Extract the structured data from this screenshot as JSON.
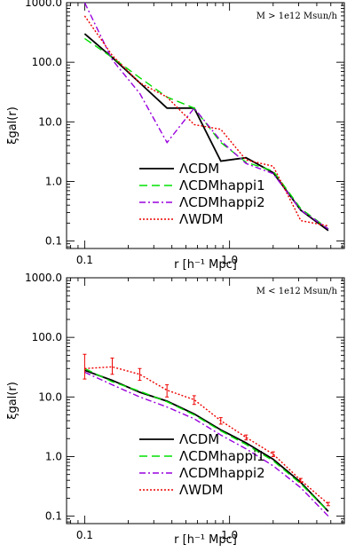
{
  "chart_data": [
    {
      "type": "line",
      "annotation": "M > 1e12 Msun/h",
      "xlabel": "r [h⁻¹ Mpc]",
      "ylabel": "ξgal(r)",
      "xscale": "log",
      "yscale": "log",
      "xlim": [
        0.075,
        6.2
      ],
      "ylim": [
        0.075,
        1000
      ],
      "xticks": [
        "0.1",
        "1.0"
      ],
      "yticks": [
        "0.1",
        "1.0",
        "10.0",
        "100.0",
        "1000.0"
      ],
      "legend_position": "bottom-center",
      "series": [
        {
          "name": "ΛCDM",
          "color": "#000000",
          "dash": "solid",
          "x": [
            0.1,
            0.155,
            0.24,
            0.37,
            0.57,
            0.87,
            1.3,
            2.0,
            3.1,
            4.8
          ],
          "y": [
            300,
            120,
            45,
            17,
            17,
            2.2,
            2.5,
            1.4,
            0.33,
            0.15
          ]
        },
        {
          "name": "ΛCDMhappi1",
          "color": "#00e000",
          "dash": "dashed",
          "x": [
            0.1,
            0.155,
            0.24,
            0.37,
            0.57,
            0.87,
            1.3,
            2.0,
            3.1,
            4.8
          ],
          "y": [
            250,
            120,
            55,
            26,
            17,
            4.5,
            2.1,
            1.5,
            0.35,
            0.16
          ]
        },
        {
          "name": "ΛCDMhappi2",
          "color": "#9900dd",
          "dash": "dashdot",
          "x": [
            0.1,
            0.155,
            0.24,
            0.37,
            0.57,
            0.87,
            1.3,
            2.0,
            3.1,
            4.8
          ],
          "y": [
            1000,
            110,
            30,
            4.5,
            17,
            4.8,
            2.0,
            1.35,
            0.33,
            0.16
          ]
        },
        {
          "name": "ΛWDM",
          "color": "#ee0000",
          "dash": "dotted",
          "x": [
            0.1,
            0.155,
            0.24,
            0.37,
            0.57,
            0.87,
            1.3,
            2.0,
            3.1,
            4.8
          ],
          "y": [
            600,
            130,
            45,
            26,
            9,
            7.5,
            2.3,
            1.8,
            0.22,
            0.18
          ]
        }
      ]
    },
    {
      "type": "line",
      "annotation": "M < 1e12 Msun/h",
      "xlabel": "r [h⁻¹ Mpc]",
      "ylabel": "ξgal(r)",
      "xscale": "log",
      "yscale": "log",
      "xlim": [
        0.075,
        6.2
      ],
      "ylim": [
        0.075,
        1000
      ],
      "xticks": [
        "0.1",
        "1.0"
      ],
      "yticks": [
        "0.1",
        "1.0",
        "10.0",
        "100.0",
        "1000.0"
      ],
      "legend_position": "bottom-center",
      "series": [
        {
          "name": "ΛCDM",
          "color": "#000000",
          "dash": "solid",
          "x": [
            0.1,
            0.155,
            0.24,
            0.37,
            0.57,
            0.87,
            1.3,
            2.0,
            3.1,
            4.8
          ],
          "y": [
            28,
            19,
            12,
            8.5,
            5.2,
            2.8,
            1.7,
            0.9,
            0.37,
            0.12
          ]
        },
        {
          "name": "ΛCDMhappi1",
          "color": "#00e000",
          "dash": "dashed",
          "x": [
            0.1,
            0.155,
            0.24,
            0.37,
            0.57,
            0.87,
            1.3,
            2.0,
            3.1,
            4.8
          ],
          "y": [
            30,
            18,
            12.5,
            8.3,
            5.0,
            2.7,
            1.6,
            0.85,
            0.35,
            0.12
          ]
        },
        {
          "name": "ΛCDMhappi2",
          "color": "#9900dd",
          "dash": "dashdot",
          "x": [
            0.1,
            0.155,
            0.24,
            0.37,
            0.57,
            0.87,
            1.3,
            2.0,
            3.1,
            4.8
          ],
          "y": [
            26,
            16,
            10,
            6.8,
            4.3,
            2.3,
            1.35,
            0.7,
            0.3,
            0.1
          ]
        },
        {
          "name": "ΛWDM",
          "color": "#ee0000",
          "dash": "dotted",
          "x": [
            0.1,
            0.155,
            0.24,
            0.37,
            0.57,
            0.87,
            1.3,
            2.0,
            3.1,
            4.8
          ],
          "y": [
            30,
            32,
            24,
            13,
            9,
            4.0,
            2.1,
            1.1,
            0.4,
            0.16
          ],
          "errors": [
            [
              20,
              52
            ],
            [
              24,
              45
            ],
            [
              19,
              30
            ],
            [
              10,
              16
            ],
            [
              7.5,
              10.5
            ],
            [
              3.5,
              4.5
            ],
            [
              1.9,
              2.3
            ],
            [
              1.0,
              1.2
            ],
            [
              0.37,
              0.43
            ],
            [
              0.15,
              0.17
            ]
          ]
        }
      ]
    }
  ]
}
